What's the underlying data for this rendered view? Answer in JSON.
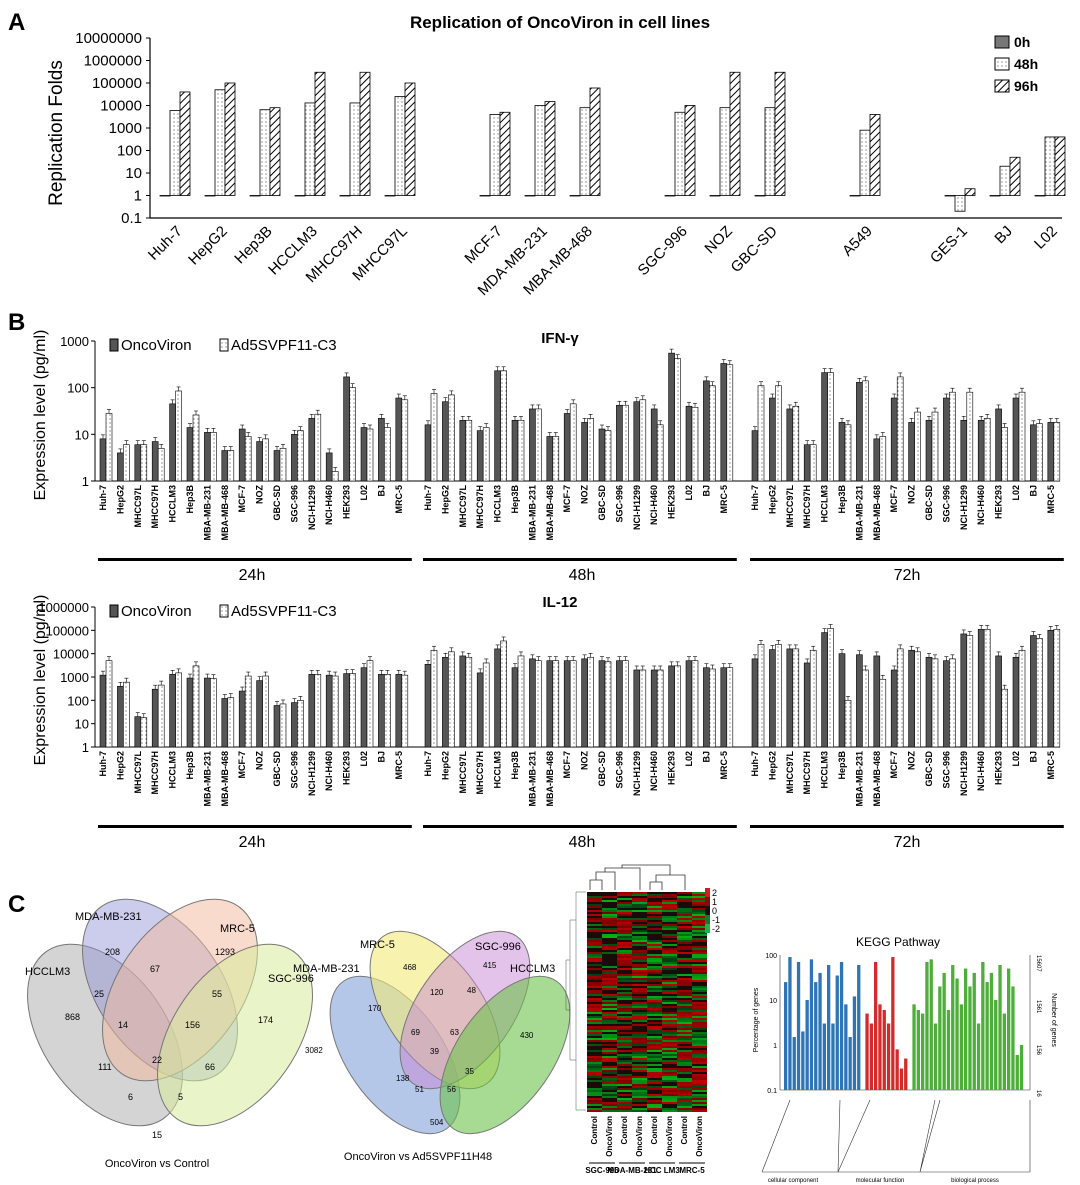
{
  "panel_letters": {
    "a": "A",
    "b": "B",
    "c": "C"
  },
  "colors": {
    "dark": "#555555",
    "light": "#ffffff",
    "blue": "#2e75b6",
    "red": "#d22b2b",
    "green": "#4daf3a"
  },
  "chart_data": [
    {
      "id": "panelA",
      "type": "bar",
      "title": "Replication of OncoViron in cell lines",
      "ylabel": "Replication Folds",
      "yscale": "log",
      "ylim": [
        0.1,
        10000000
      ],
      "yticks": [
        "10000000",
        "1000000",
        "100000",
        "10000",
        "1000",
        "100",
        "10",
        "1",
        "0.1"
      ],
      "categories": [
        "Huh-7",
        "HepG2",
        "Hep3B",
        "HCCLM3",
        "MHCC97H",
        "MHCC97L",
        "MCF-7",
        "MDA-MB-231",
        "MBA-MB-468",
        "SGC-996",
        "NOZ",
        "GBC-SD",
        "A549",
        "GES-1",
        "BJ",
        "L02"
      ],
      "groups": [
        6,
        3,
        3,
        1,
        3
      ],
      "series": [
        {
          "name": "0h",
          "values": [
            1,
            1,
            1,
            1,
            1,
            1,
            1,
            1,
            1,
            1,
            1,
            1,
            1,
            1,
            1,
            1
          ]
        },
        {
          "name": "48h",
          "values": [
            6000,
            50000,
            6500,
            13000,
            13000,
            25000,
            4000,
            10000,
            8000,
            5000,
            8000,
            8000,
            800,
            0.2,
            20,
            400
          ]
        },
        {
          "name": "96h",
          "values": [
            40000,
            100000,
            8000,
            300000,
            300000,
            100000,
            5000,
            15000,
            60000,
            10000,
            300000,
            300000,
            4000,
            2,
            50,
            400
          ]
        }
      ],
      "legend_position": "top-right"
    },
    {
      "id": "ifng",
      "type": "bar",
      "title": "IFN-γ",
      "ylabel": "Expression level (pg/ml)",
      "yscale": "log",
      "ylim": [
        1,
        1000
      ],
      "yticks": [
        "1000",
        "100",
        "10",
        "1"
      ],
      "time_groups": [
        "24h",
        "48h",
        "72h"
      ],
      "legend": [
        "OncoViron",
        "Ad5SVPF11-C3"
      ],
      "groups": [
        {
          "categories": [
            "Huh-7",
            "HepG2",
            "MHCC97L",
            "MHCC97H",
            "HCCLM3",
            "Hep3B",
            "MBA-MB-231",
            "MBA-MB-468",
            "MCF-7",
            "NOZ",
            "GBC-SD",
            "SGC-996",
            "NCI-H1299",
            "NCI-H460",
            "HEK293",
            "L02",
            "BJ",
            "MRC-5"
          ],
          "onco": [
            8,
            4,
            6,
            7,
            45,
            14,
            11,
            4.5,
            13,
            7,
            4.5,
            10,
            22,
            4,
            170,
            14,
            22,
            60
          ],
          "ad5": [
            28,
            6,
            6,
            5,
            85,
            26,
            11,
            4.5,
            9,
            8,
            5,
            12,
            27,
            1.6,
            100,
            13,
            14,
            55
          ]
        },
        {
          "categories": [
            "Huh-7",
            "HepG2",
            "MHCC97L",
            "MHCC97H",
            "HCCLM3",
            "Hep3B",
            "MBA-MB-231",
            "MBA-MB-468",
            "MCF-7",
            "NOZ",
            "GBC-SD",
            "SGC-996",
            "NCI-H1299",
            "NCI-H460",
            "HEK293",
            "L02",
            "BJ",
            "MRC-5"
          ],
          "onco": [
            16,
            50,
            20,
            12,
            230,
            20,
            35,
            9,
            28,
            18,
            13,
            42,
            50,
            35,
            550,
            40,
            140,
            330
          ],
          "ad5": [
            75,
            70,
            20,
            14,
            230,
            20,
            35,
            9,
            45,
            22,
            12,
            42,
            55,
            16,
            420,
            38,
            110,
            310
          ]
        },
        {
          "categories": [
            "Huh-7",
            "HepG2",
            "MHCC97L",
            "MHCC97H",
            "HCCLM3",
            "Hep3B",
            "MBA-MB-231",
            "MBA-MB-468",
            "MCF-7",
            "NOZ",
            "GBC-SD",
            "SGC-996",
            "NCI-H1299",
            "NCI-H460",
            "HEK293",
            "L02",
            "BJ",
            "MRC-5"
          ],
          "onco": [
            12,
            60,
            35,
            6,
            210,
            18,
            130,
            8,
            60,
            18,
            20,
            60,
            20,
            20,
            35,
            60,
            16,
            18
          ],
          "ad5": [
            110,
            110,
            40,
            6,
            210,
            16,
            140,
            9,
            170,
            30,
            30,
            80,
            80,
            22,
            14,
            80,
            17,
            18
          ]
        }
      ]
    },
    {
      "id": "il12",
      "type": "bar",
      "title": "IL-12",
      "ylabel": "Expression level (pg/ml)",
      "yscale": "log",
      "ylim": [
        1,
        1000000
      ],
      "yticks": [
        "1000000",
        "100000",
        "10000",
        "1000",
        "100",
        "10",
        "1"
      ],
      "time_groups": [
        "24h",
        "48h",
        "72h"
      ],
      "legend": [
        "OncoViron",
        "Ad5SVPF11-C3"
      ],
      "groups": [
        {
          "categories": [
            "Huh-7",
            "HepG2",
            "MHCC97L",
            "MHCC97H",
            "HCCLM3",
            "Hep3B",
            "MBA-MB-231",
            "MBA-MB-468",
            "MCF-7",
            "NOZ",
            "GBC-SD",
            "SGC-996",
            "NCI-H1299",
            "NCI-H460",
            "HEK293",
            "L02",
            "BJ",
            "MRC-5"
          ],
          "onco": [
            1200,
            400,
            20,
            300,
            1300,
            900,
            900,
            120,
            250,
            700,
            60,
            80,
            1300,
            1200,
            1400,
            2500,
            1300,
            1300
          ],
          "ad5": [
            5000,
            600,
            18,
            450,
            1500,
            3000,
            850,
            130,
            1100,
            1100,
            70,
            100,
            1300,
            1100,
            1400,
            5000,
            1300,
            1200
          ]
        },
        {
          "categories": [
            "Huh-7",
            "HepG2",
            "MHCC97L",
            "MHCC97H",
            "HCCLM3",
            "Hep3B",
            "MBA-MB-231",
            "MBA-MB-468",
            "MCF-7",
            "NOZ",
            "GBC-SD",
            "SGC-996",
            "NCI-H1299",
            "NCI-H460",
            "HEK293",
            "L02",
            "BJ",
            "MRC-5"
          ],
          "onco": [
            3500,
            7000,
            8000,
            1500,
            16000,
            2500,
            6000,
            5000,
            5000,
            6000,
            5000,
            5000,
            2000,
            2000,
            3000,
            5000,
            2500,
            2500
          ],
          "ad5": [
            14000,
            12000,
            7000,
            4000,
            35000,
            8000,
            5000,
            5000,
            5000,
            7000,
            4500,
            5000,
            2000,
            2000,
            3000,
            5000,
            2200,
            2500
          ]
        },
        {
          "categories": [
            "Huh-7",
            "HepG2",
            "MHCC97L",
            "MHCC97H",
            "HCCLM3",
            "Hep3B",
            "MBA-MB-231",
            "MBA-MB-468",
            "MCF-7",
            "NOZ",
            "GBC-SD",
            "SGC-996",
            "NCI-H1299",
            "NCI-H460",
            "HEK293",
            "L02",
            "BJ",
            "MRC-5"
          ],
          "onco": [
            6000,
            15000,
            16000,
            4000,
            80000,
            10000,
            9000,
            8000,
            2000,
            14000,
            7000,
            5000,
            70000,
            110000,
            8000,
            7000,
            60000,
            100000
          ],
          "ad5": [
            25000,
            25000,
            16000,
            14000,
            120000,
            100,
            2000,
            800,
            16000,
            12000,
            6000,
            6000,
            60000,
            110000,
            300,
            14000,
            45000,
            110000
          ]
        }
      ]
    },
    {
      "id": "kegg",
      "type": "bar",
      "title": "KEGG Pathway",
      "ylabel": "Percentage of genes",
      "y2label": "Number of genes",
      "yscale": "log",
      "yticks": [
        "100",
        "10",
        "1",
        "0.1"
      ],
      "y2ticks": [
        "15607",
        "1561",
        "156",
        "16"
      ],
      "category_groups": [
        "cellular component",
        "molecular function",
        "biological process"
      ],
      "series": [
        {
          "name": "cellular component",
          "values": [
            25,
            90,
            1.5,
            70,
            2,
            10,
            80,
            25,
            40,
            3,
            60,
            3,
            35,
            70,
            8,
            1.5,
            12,
            60
          ]
        },
        {
          "name": "molecular function",
          "values": [
            5,
            3,
            70,
            8,
            6,
            3,
            90,
            0.8,
            0.3,
            0.5
          ]
        },
        {
          "name": "biological process",
          "values": [
            8,
            6,
            5,
            70,
            80,
            3,
            20,
            40,
            6,
            60,
            30,
            8,
            50,
            20,
            40,
            3,
            70,
            25,
            40,
            10,
            60,
            5,
            50,
            20,
            0.6,
            1
          ]
        }
      ]
    }
  ],
  "ifng_timelabels": {
    "t1": "24h",
    "t2": "48h",
    "t3": "72h"
  },
  "il12_timelabels": {
    "t1": "24h",
    "t2": "48h",
    "t3": "72h"
  },
  "venn1": {
    "sets": [
      "MDA-MB-231",
      "MRC-5",
      "HCCLM3",
      "SGC-996"
    ],
    "caption": "OncoViron vs Control",
    "numbers": [
      "208",
      "67",
      "1293",
      "868",
      "25",
      "55",
      "174",
      "14",
      "156",
      "22",
      "111",
      "66",
      "6",
      "5",
      "15"
    ]
  },
  "venn2": {
    "sets": [
      "MRC-5",
      "SGC-996",
      "MDA-MB-231",
      "HCCLM3"
    ],
    "caption": "OncoViron vs Ad5SVPF11H48",
    "numbers": [
      "468",
      "415",
      "170",
      "120",
      "48",
      "3082",
      "430",
      "69",
      "63",
      "39",
      "138",
      "35",
      "51",
      "56",
      "504"
    ]
  },
  "heatmap": {
    "scale": [
      "2",
      "1",
      "0",
      "-1",
      "-2"
    ],
    "columns": [
      "Control",
      "OncoViron",
      "Control",
      "OncoViron",
      "Control",
      "OncoViron",
      "Control",
      "OncoViron"
    ],
    "groups": [
      "SGC-996",
      "MDA-MB-231",
      "HCC LM3",
      "MRC-5"
    ]
  }
}
